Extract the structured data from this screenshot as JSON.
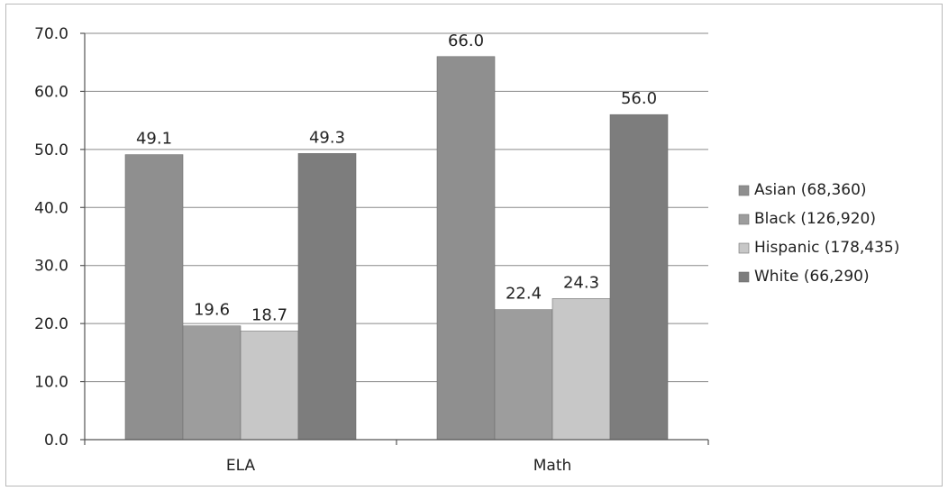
{
  "chart_data": {
    "type": "bar",
    "categories": [
      "ELA",
      "Math"
    ],
    "series": [
      {
        "name": "Asian (68,360)",
        "values": [
          49.1,
          66.0
        ],
        "color": "#8f8f8f"
      },
      {
        "name": "Black (126,920)",
        "values": [
          19.6,
          22.4
        ],
        "color": "#9d9d9d"
      },
      {
        "name": "Hispanic (178,435)",
        "values": [
          18.7,
          24.3
        ],
        "color": "#c7c7c7"
      },
      {
        "name": "White (66,290)",
        "values": [
          49.3,
          56.0
        ],
        "color": "#7d7d7d"
      }
    ],
    "value_labels": [
      [
        "49.1",
        "66.0"
      ],
      [
        "19.6",
        "22.4"
      ],
      [
        "18.7",
        "24.3"
      ],
      [
        "49.3",
        "56.0"
      ]
    ],
    "yticks": [
      "0.0",
      "10.0",
      "20.0",
      "30.0",
      "40.0",
      "50.0",
      "60.0",
      "70.0"
    ],
    "ylim": [
      0,
      70
    ],
    "grid": true,
    "legend_position": "right",
    "title": "",
    "xlabel": "",
    "ylabel": ""
  }
}
